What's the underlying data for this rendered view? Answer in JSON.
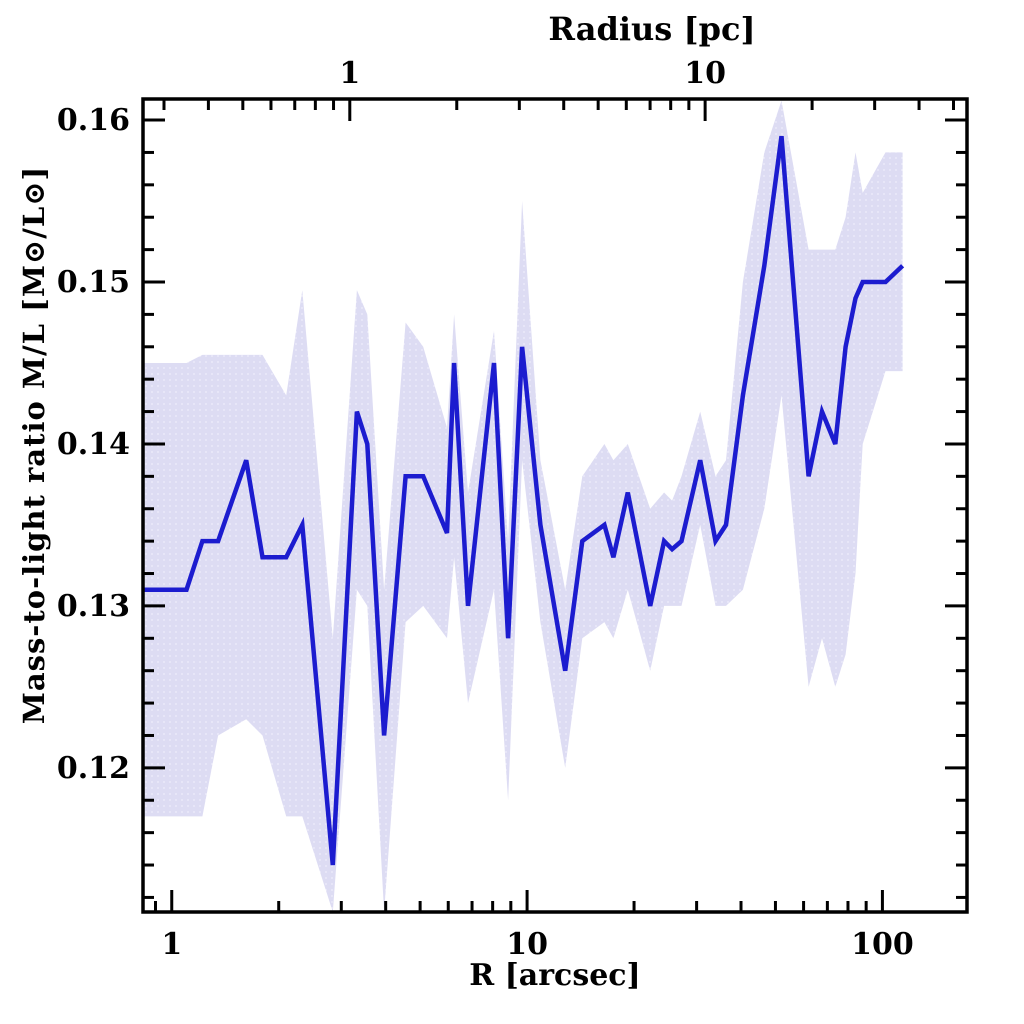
{
  "figure": {
    "background": "#ffffff"
  },
  "chart_data": {
    "type": "line",
    "title": "Radius [pc]",
    "xlabel": "R [arcsec]",
    "ylabel": "Mass-to-light ratio M/L [M⊙/L⊙]",
    "x_scale": "log",
    "grid": false,
    "legend": null,
    "xlim": [
      0.83,
      173
    ],
    "ylim": [
      0.1111,
      0.1613
    ],
    "x_arcsec": [
      0.83,
      1.1,
      1.22,
      1.35,
      1.62,
      1.8,
      2.1,
      2.33,
      2.84,
      3.32,
      3.55,
      3.96,
      4.55,
      5.1,
      5.95,
      6.23,
      6.82,
      8.07,
      8.84,
      9.68,
      10.9,
      12.8,
      14.3,
      16.5,
      17.5,
      19.2,
      22.2,
      24.3,
      25.6,
      27.2,
      30.7,
      33.9,
      36.3,
      40.5,
      46.5,
      52,
      62,
      67.6,
      73.7,
      78.8,
      84,
      88,
      102,
      114
    ],
    "series": [
      {
        "name": "mass-to-light ratio profile",
        "values": [
          0.131,
          0.131,
          0.134,
          0.134,
          0.139,
          0.133,
          0.133,
          0.135,
          0.114,
          0.142,
          0.14,
          0.122,
          0.138,
          0.138,
          0.1345,
          0.145,
          0.13,
          0.145,
          0.128,
          0.146,
          0.135,
          0.126,
          0.134,
          0.135,
          0.133,
          0.137,
          0.13,
          0.134,
          0.1335,
          0.134,
          0.139,
          0.134,
          0.135,
          0.143,
          0.151,
          0.159,
          0.138,
          0.142,
          0.14,
          0.146,
          0.149,
          0.15,
          0.15,
          0.151
        ]
      }
    ],
    "band": {
      "name": "uncertainty band",
      "upper": [
        0.145,
        0.145,
        0.1455,
        0.1455,
        0.1455,
        0.1455,
        0.143,
        0.1495,
        0.128,
        0.1495,
        0.148,
        0.131,
        0.1475,
        0.146,
        0.141,
        0.148,
        0.137,
        0.147,
        0.134,
        0.155,
        0.139,
        0.131,
        0.138,
        0.14,
        0.139,
        0.14,
        0.136,
        0.137,
        0.1365,
        0.138,
        0.142,
        0.138,
        0.139,
        0.15,
        0.158,
        0.1612,
        0.152,
        0.152,
        0.152,
        0.154,
        0.158,
        0.1555,
        0.158,
        0.158
      ],
      "lower": [
        0.117,
        0.117,
        0.117,
        0.122,
        0.123,
        0.122,
        0.117,
        0.117,
        0.1111,
        0.131,
        0.13,
        0.1111,
        0.129,
        0.13,
        0.128,
        0.133,
        0.124,
        0.131,
        0.118,
        0.139,
        0.129,
        0.12,
        0.128,
        0.129,
        0.128,
        0.131,
        0.126,
        0.13,
        0.13,
        0.13,
        0.135,
        0.13,
        0.13,
        0.131,
        0.136,
        0.143,
        0.125,
        0.128,
        0.125,
        0.127,
        0.132,
        0.14,
        0.1445,
        0.1445
      ]
    },
    "x_ticks_major": {
      "values": [
        1,
        10,
        100
      ],
      "labels": [
        "1",
        "10",
        "100"
      ]
    },
    "x_ticks_minor": [
      0.9,
      2,
      3,
      4,
      5,
      6,
      7,
      8,
      9,
      20,
      30,
      40,
      50,
      60,
      70,
      80,
      90
    ],
    "y_ticks_major": {
      "values": [
        0.12,
        0.13,
        0.14,
        0.15,
        0.16
      ],
      "labels": [
        "0.12",
        "0.13",
        "0.14",
        "0.15",
        "0.16"
      ]
    },
    "y_minor_ticks": [
      0.112,
      0.114,
      0.116,
      0.118,
      0.122,
      0.124,
      0.126,
      0.128,
      0.132,
      0.134,
      0.136,
      0.138,
      0.142,
      0.144,
      0.146,
      0.148,
      0.152,
      0.154,
      0.156,
      0.158
    ],
    "top_axis": {
      "label": "Radius [pc]",
      "arcsec_per_pc": 3.17,
      "ticks_major": {
        "values": [
          1,
          10
        ],
        "labels": [
          "1",
          "10"
        ]
      },
      "ticks_minor": [
        0.3,
        0.4,
        0.5,
        0.6,
        0.7,
        0.8,
        0.9,
        2,
        3,
        4,
        5,
        6,
        7,
        8,
        9,
        20,
        30,
        40,
        50
      ]
    },
    "colors": {
      "line": "#1c1ccf",
      "band": "#dddcf3",
      "band_dot": "#efeefb",
      "frame": "#000000",
      "text": "#000000"
    }
  }
}
